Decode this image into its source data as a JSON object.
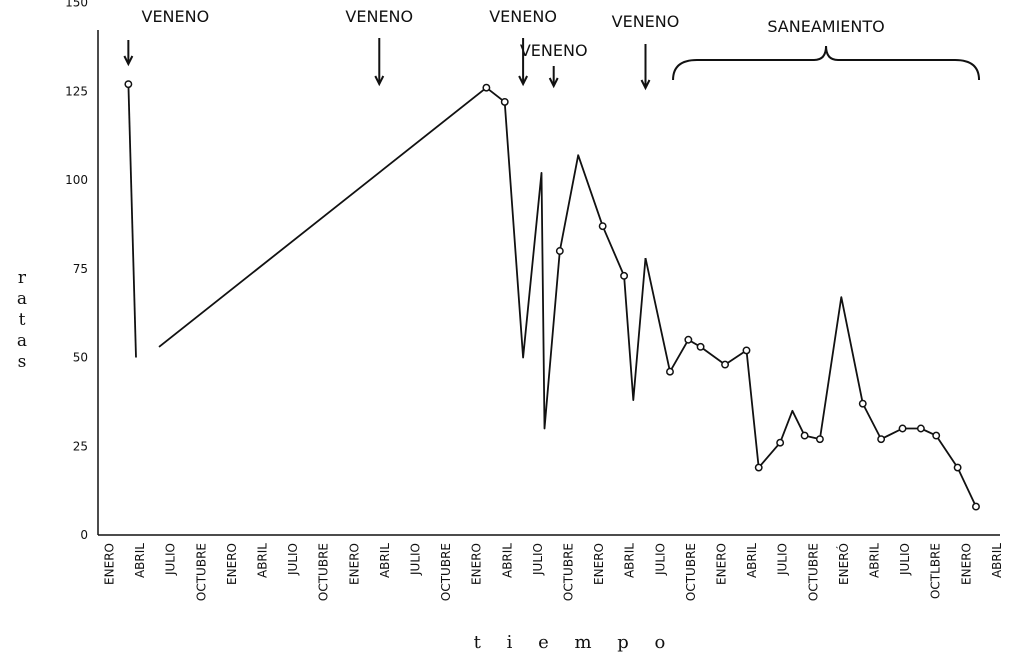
{
  "chart_data": {
    "type": "line",
    "ylabel": "r a t a s",
    "xlabel": "t i e m p o",
    "ylim": [
      0,
      150
    ],
    "y_ticks": [
      "150",
      "125",
      "100",
      "75",
      "50",
      "25",
      "0"
    ],
    "y_tick_values": [
      150,
      125,
      100,
      75,
      50,
      25,
      0
    ],
    "categories": [
      "ENERO",
      "ABRIL",
      "JULIO",
      "OCTUBRE",
      "ENERO",
      "ABRIL",
      "JULIO",
      "OCTUBRE",
      "ENERO",
      "ABRIL",
      "JULIO",
      "OCTUBRE",
      "ENERO",
      "ABRIL",
      "JULIO",
      "OCTUBRE",
      "ENERO",
      "ABRIL",
      "JULIO",
      "OCTUBRE",
      "ENERO",
      "ABRIL",
      "JULIO",
      "OCTUBRE",
      "ENERÓ",
      "ABRIL",
      "JULIO",
      "OCTLBRE",
      "ENERO",
      "ABRIL"
    ],
    "grid": false,
    "series": [
      {
        "segments": [
          [
            [
              0.6,
              127
            ],
            [
              0.85,
              50
            ]
          ],
          [
            [
              1.6,
              53
            ],
            [
              12.3,
              126
            ]
          ],
          [
            [
              12.3,
              126
            ],
            [
              12.9,
              122
            ],
            [
              13.5,
              50
            ],
            [
              14.1,
              102
            ],
            [
              14.2,
              30
            ],
            [
              14.7,
              80
            ],
            [
              15.3,
              107
            ],
            [
              16.1,
              87
            ],
            [
              16.8,
              73
            ],
            [
              17.1,
              38
            ],
            [
              17.5,
              78
            ]
          ],
          [
            [
              17.5,
              78
            ],
            [
              18.3,
              46
            ],
            [
              18.9,
              55
            ],
            [
              19.3,
              53
            ],
            [
              20.1,
              48
            ],
            [
              20.8,
              52
            ],
            [
              21.2,
              19
            ],
            [
              21.9,
              26
            ],
            [
              22.3,
              35
            ],
            [
              22.7,
              28
            ],
            [
              23.2,
              27
            ],
            [
              23.9,
              67
            ],
            [
              24.6,
              37
            ],
            [
              25.2,
              27
            ],
            [
              25.9,
              30
            ],
            [
              26.5,
              30
            ],
            [
              27.0,
              28
            ],
            [
              27.7,
              19
            ],
            [
              28.3,
              8
            ]
          ]
        ],
        "markers": [
          [
            0.6,
            127
          ],
          [
            12.3,
            126
          ],
          [
            12.9,
            122
          ],
          [
            14.7,
            80
          ],
          [
            16.1,
            87
          ],
          [
            16.8,
            73
          ],
          [
            18.3,
            46
          ],
          [
            18.9,
            55
          ],
          [
            19.3,
            53
          ],
          [
            20.1,
            48
          ],
          [
            20.8,
            52
          ],
          [
            21.2,
            19
          ],
          [
            21.9,
            26
          ],
          [
            22.7,
            28
          ],
          [
            23.2,
            27
          ],
          [
            24.6,
            37
          ],
          [
            25.2,
            27
          ],
          [
            25.9,
            30
          ],
          [
            26.5,
            30
          ],
          [
            27.0,
            28
          ],
          [
            27.7,
            19
          ],
          [
            28.3,
            8
          ]
        ]
      }
    ],
    "annotations": [
      {
        "text": "VENENO",
        "x": 0.6,
        "arrow": "short"
      },
      {
        "text": "VENENO",
        "x": 8.8,
        "arrow": "long"
      },
      {
        "text": "VENENO",
        "x": 13.5,
        "arrow": "long"
      },
      {
        "text": "VENENO",
        "x": 14.5,
        "arrow": "short-low"
      },
      {
        "text": "VENENO",
        "x": 17.5,
        "arrow": "long-low"
      }
    ],
    "bracket": {
      "text": "SANEAMIENTO",
      "x_start": 18.4,
      "x_end": 28.4
    }
  }
}
